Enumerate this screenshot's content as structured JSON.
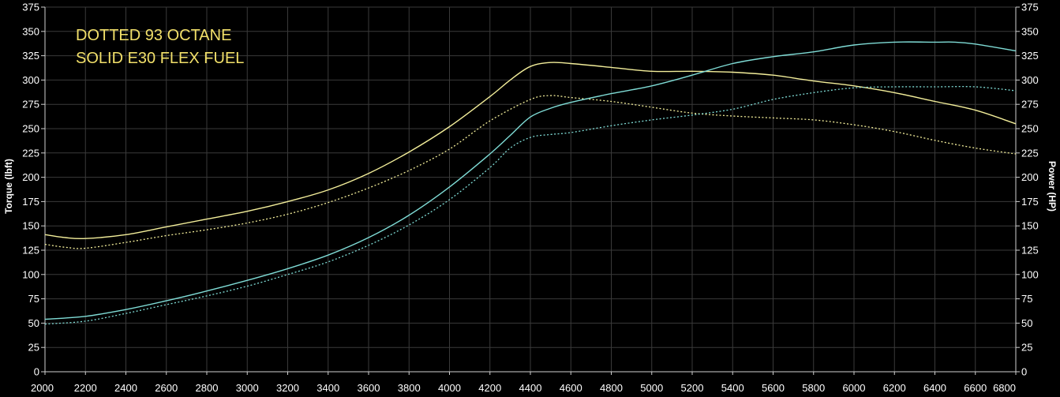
{
  "chart_data": {
    "type": "line",
    "annotations": [
      "DOTTED 93 OCTANE",
      "SOLID E30 FLEX FUEL"
    ],
    "ylabel_left": "Torque (lbft)",
    "ylabel_right": "Power (HP)",
    "xlim": [
      2000,
      6800
    ],
    "ylim": [
      0,
      375
    ],
    "x_ticks": [
      "2000",
      "2200",
      "2400",
      "2600",
      "2800",
      "3000",
      "3200",
      "3400",
      "3600",
      "3800",
      "4000",
      "4200",
      "4400",
      "4600",
      "4800",
      "5000",
      "5200",
      "5400",
      "5600",
      "5800",
      "6000",
      "6200",
      "6400",
      "6600",
      "6800"
    ],
    "y_ticks_left": [
      "0",
      "25",
      "50",
      "75",
      "100",
      "125",
      "150",
      "175",
      "200",
      "225",
      "250",
      "275",
      "300",
      "325",
      "350",
      "375"
    ],
    "y_ticks_right": [
      "0",
      "25",
      "50",
      "75",
      "100",
      "125",
      "150",
      "175",
      "200",
      "225",
      "250",
      "275",
      "300",
      "325",
      "350",
      "375"
    ],
    "grid": true,
    "colors": {
      "torque": "#f3ee9a",
      "power": "#7fdcd6"
    },
    "series": [
      {
        "name": "E30 torque",
        "style": "solid",
        "color": "#f3ee9a",
        "x": [
          2000,
          2100,
          2200,
          2400,
          2600,
          2800,
          3000,
          3200,
          3400,
          3600,
          3800,
          4000,
          4200,
          4300,
          4400,
          4500,
          4600,
          4800,
          5000,
          5200,
          5400,
          5600,
          5800,
          6000,
          6200,
          6400,
          6600,
          6800
        ],
        "y": [
          141,
          138,
          137,
          141,
          149,
          157,
          165,
          175,
          187,
          204,
          226,
          252,
          283,
          300,
          314,
          318,
          317,
          313,
          309,
          309,
          308,
          305,
          299,
          294,
          287,
          278,
          269,
          255
        ]
      },
      {
        "name": "93 octane torque",
        "style": "dotted",
        "color": "#f3ee9a",
        "x": [
          2000,
          2100,
          2200,
          2400,
          2600,
          2800,
          3000,
          3200,
          3400,
          3600,
          3800,
          4000,
          4200,
          4400,
          4500,
          4600,
          4800,
          5000,
          5200,
          5400,
          5600,
          5800,
          6000,
          6200,
          6400,
          6600,
          6800
        ],
        "y": [
          131,
          128,
          127,
          133,
          140,
          146,
          153,
          162,
          174,
          189,
          207,
          229,
          258,
          280,
          284,
          282,
          278,
          272,
          266,
          263,
          261,
          259,
          254,
          247,
          238,
          230,
          224
        ]
      },
      {
        "name": "E30 power",
        "style": "solid",
        "color": "#7fdcd6",
        "x": [
          2000,
          2200,
          2400,
          2600,
          2800,
          3000,
          3200,
          3400,
          3600,
          3800,
          4000,
          4200,
          4300,
          4400,
          4500,
          4600,
          4800,
          5000,
          5200,
          5400,
          5600,
          5800,
          6000,
          6200,
          6400,
          6500,
          6600,
          6800
        ],
        "y": [
          54,
          57,
          64,
          73,
          83,
          94,
          106,
          120,
          138,
          161,
          190,
          224,
          243,
          262,
          271,
          277,
          286,
          294,
          305,
          317,
          324,
          329,
          336,
          339,
          339,
          339,
          337,
          330
        ]
      },
      {
        "name": "93 octane power",
        "style": "dotted",
        "color": "#7fdcd6",
        "x": [
          2000,
          2200,
          2400,
          2600,
          2800,
          3000,
          3200,
          3400,
          3600,
          3800,
          4000,
          4200,
          4300,
          4400,
          4500,
          4600,
          4800,
          5000,
          5200,
          5400,
          5600,
          5800,
          6000,
          6200,
          6400,
          6600,
          6800
        ],
        "y": [
          49,
          52,
          60,
          69,
          78,
          88,
          100,
          113,
          130,
          151,
          177,
          210,
          230,
          241,
          244,
          246,
          253,
          259,
          264,
          270,
          280,
          287,
          292,
          293,
          293,
          293,
          289
        ]
      }
    ]
  }
}
